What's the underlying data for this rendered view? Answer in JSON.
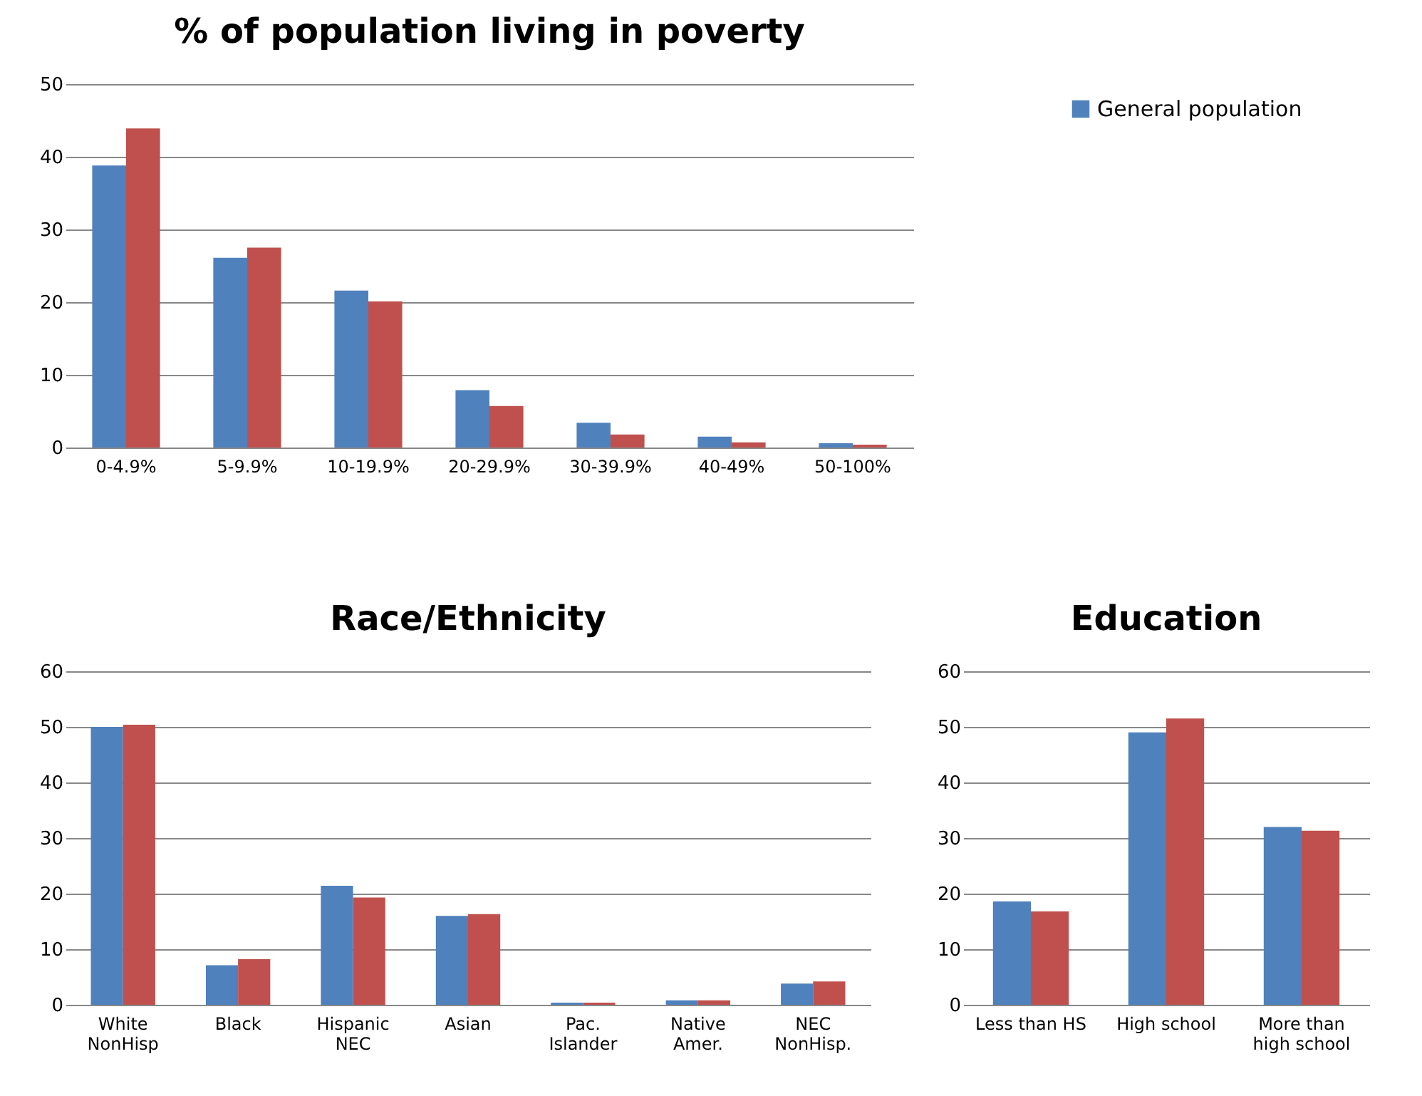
{
  "chart_data": [
    {
      "type": "bar",
      "title": "% of population living in poverty",
      "categories": [
        "0-4.9%",
        "5-9.9%",
        "10-19.9%",
        "20-29.9%",
        "30-39.9%",
        "40-49%",
        "50-100%"
      ],
      "series": [
        {
          "name": "General population",
          "color": "#4f81bd",
          "values": [
            38.8,
            26.1,
            21.6,
            7.9,
            3.4,
            1.5,
            0.6
          ]
        },
        {
          "color": "#c0504d",
          "values": [
            43.9,
            27.5,
            20.1,
            5.7,
            1.8,
            0.7,
            0.4
          ]
        }
      ],
      "ylim": [
        0,
        50
      ],
      "yticks": [
        0,
        10,
        20,
        30,
        40,
        50
      ],
      "grid": "y",
      "legend": "right"
    },
    {
      "type": "bar",
      "title": "Race/Ethnicity",
      "categories": [
        "White\nNonHisp",
        "Black",
        "Hispanic\nNEC",
        "Asian",
        "Pac.\nIslander",
        "Native\nAmer.",
        "NEC\nNonHisp."
      ],
      "series": [
        {
          "color": "#4f81bd",
          "values": [
            50.0,
            7.1,
            21.4,
            16.0,
            0.4,
            0.8,
            3.8
          ]
        },
        {
          "color": "#c0504d",
          "values": [
            50.4,
            8.2,
            19.3,
            16.3,
            0.4,
            0.8,
            4.2
          ]
        }
      ],
      "ylim": [
        0,
        60
      ],
      "yticks": [
        0,
        10,
        20,
        30,
        40,
        50,
        60
      ],
      "grid": "y"
    },
    {
      "type": "bar",
      "title": "Education",
      "categories": [
        "Less than HS",
        "High school",
        "More than\nhigh school"
      ],
      "series": [
        {
          "color": "#4f81bd",
          "values": [
            18.6,
            49.0,
            32.0
          ]
        },
        {
          "color": "#c0504d",
          "values": [
            16.8,
            51.5,
            31.3
          ]
        }
      ],
      "ylim": [
        0,
        60
      ],
      "yticks": [
        0,
        10,
        20,
        30,
        40,
        50,
        60
      ],
      "grid": "y"
    }
  ]
}
